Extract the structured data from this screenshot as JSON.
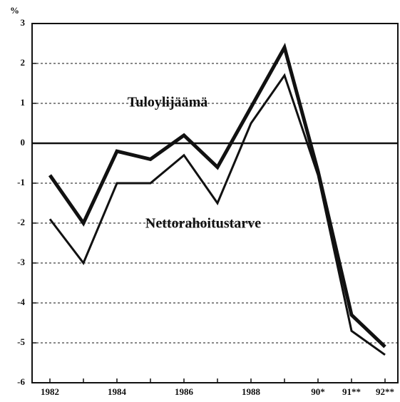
{
  "chart_data": {
    "type": "line",
    "y_label": "%",
    "categories": [
      "1982",
      null,
      "1984",
      null,
      "1986",
      null,
      "1988",
      null,
      "90*",
      "91**",
      "92**"
    ],
    "series": [
      {
        "name": "Tuloylijäämä",
        "color": "#111111",
        "values": [
          -0.8,
          -2.0,
          -0.2,
          -0.4,
          0.2,
          -0.6,
          0.9,
          2.4,
          -0.7,
          -4.3,
          -5.1
        ]
      },
      {
        "name": "Nettorahoitustarve",
        "color": "#111111",
        "values": [
          -1.9,
          -3.0,
          -1.0,
          -1.0,
          -0.3,
          -1.5,
          0.5,
          1.7,
          -0.8,
          -4.7,
          -5.3
        ]
      }
    ],
    "ylim": [
      -6,
      3
    ],
    "yticks": [
      3,
      2,
      1,
      0,
      -1,
      -2,
      -3,
      -4,
      -5,
      -6
    ],
    "grid": true
  }
}
